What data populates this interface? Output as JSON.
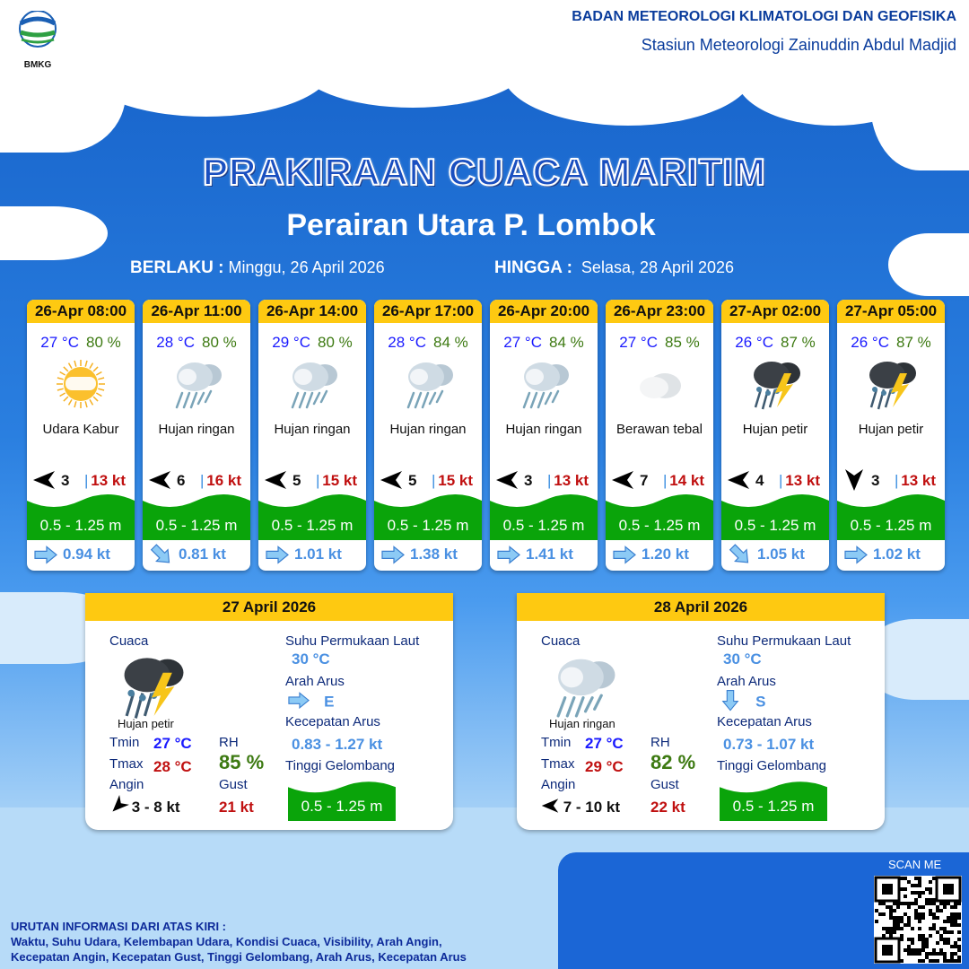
{
  "header": {
    "org": "BADAN METEOROLOGI KLIMATOLOGI DAN GEOFISIKA",
    "station": "Stasiun Meteorologi Zainuddin Abdul Madjid",
    "logo_text": "BMKG"
  },
  "title": "PRAKIRAAN CUACA MARITIM",
  "subtitle": "Perairan Utara P. Lombok",
  "validity": {
    "from_label": "BERLAKU :",
    "from": "Minggu, 26 April 2026",
    "to_label": "HINGGA :",
    "to": "Selasa, 28 April 2026"
  },
  "colors": {
    "header_yellow": "#fec911",
    "wave_green": "#0aa40a",
    "temp_blue": "#1a1aff",
    "rh_green": "#3d7a12",
    "gust_red": "#c01010",
    "current_blue": "#4a90e2"
  },
  "forecasts": [
    {
      "time": "26-Apr 08:00",
      "temp": "27 °C",
      "rh": "80 %",
      "icon": "haze-sun-icon",
      "condition": "Udara Kabur",
      "wind_dir": "left",
      "wind_speed": "3",
      "gust": "13 kt",
      "wave": "0.5 - 1.25 m",
      "current_dir": "right",
      "current_speed": "0.94 kt"
    },
    {
      "time": "26-Apr 11:00",
      "temp": "28 °C",
      "rh": "80 %",
      "icon": "light-rain-icon",
      "condition": "Hujan ringan",
      "wind_dir": "left",
      "wind_speed": "6",
      "gust": "16 kt",
      "wave": "0.5 - 1.25 m",
      "current_dir": "down-right",
      "current_speed": "0.81 kt"
    },
    {
      "time": "26-Apr 14:00",
      "temp": "29 °C",
      "rh": "80 %",
      "icon": "light-rain-icon",
      "condition": "Hujan ringan",
      "wind_dir": "left",
      "wind_speed": "5",
      "gust": "15 kt",
      "wave": "0.5 - 1.25 m",
      "current_dir": "right",
      "current_speed": "1.01 kt"
    },
    {
      "time": "26-Apr 17:00",
      "temp": "28 °C",
      "rh": "84 %",
      "icon": "light-rain-icon",
      "condition": "Hujan ringan",
      "wind_dir": "left",
      "wind_speed": "5",
      "gust": "15 kt",
      "wave": "0.5 - 1.25 m",
      "current_dir": "right",
      "current_speed": "1.38 kt"
    },
    {
      "time": "26-Apr 20:00",
      "temp": "27 °C",
      "rh": "84 %",
      "icon": "light-rain-icon",
      "condition": "Hujan ringan",
      "wind_dir": "left",
      "wind_speed": "3",
      "gust": "13 kt",
      "wave": "0.5 - 1.25 m",
      "current_dir": "right",
      "current_speed": "1.41 kt"
    },
    {
      "time": "26-Apr 23:00",
      "temp": "27 °C",
      "rh": "85 %",
      "icon": "overcast-cloud-icon",
      "condition": "Berawan tebal",
      "wind_dir": "left",
      "wind_speed": "7",
      "gust": "14 kt",
      "wave": "0.5 - 1.25 m",
      "current_dir": "right",
      "current_speed": "1.20 kt"
    },
    {
      "time": "27-Apr 02:00",
      "temp": "26 °C",
      "rh": "87 %",
      "icon": "thunderstorm-icon",
      "condition": "Hujan petir",
      "wind_dir": "left",
      "wind_speed": "4",
      "gust": "13 kt",
      "wave": "0.5 - 1.25 m",
      "current_dir": "down-right",
      "current_speed": "1.05 kt"
    },
    {
      "time": "27-Apr 05:00",
      "temp": "26 °C",
      "rh": "87 %",
      "icon": "thunderstorm-icon",
      "condition": "Hujan petir",
      "wind_dir": "down",
      "wind_speed": "3",
      "gust": "13 kt",
      "wave": "0.5 - 1.25 m",
      "current_dir": "right",
      "current_speed": "1.02 kt"
    }
  ],
  "daily": [
    {
      "date": "27 April 2026",
      "weather_label": "Cuaca",
      "icon": "thunderstorm-icon",
      "condition": "Hujan petir",
      "tmin_label": "Tmin",
      "tmin": "27 °C",
      "tmax_label": "Tmax",
      "tmax": "28 °C",
      "rh_label": "RH",
      "rh": "85 %",
      "wind_label": "Angin",
      "wind_dir": "down-left",
      "wind": "3  - 8 kt",
      "gust_label": "Gust",
      "gust": "21 kt",
      "sst_label": "Suhu Permukaan Laut",
      "sst": "30 °C",
      "current_dir_label": "Arah Arus",
      "current_dir_icon": "right",
      "current_dir": "E",
      "current_speed_label": "Kecepatan Arus",
      "current_speed": "0.83 - 1.27 kt",
      "wave_label": "Tinggi Gelombang",
      "wave": "0.5 - 1.25 m"
    },
    {
      "date": "28 April 2026",
      "weather_label": "Cuaca",
      "icon": "light-rain-icon",
      "condition": "Hujan ringan",
      "tmin_label": "Tmin",
      "tmin": "27 °C",
      "tmax_label": "Tmax",
      "tmax": "29 °C",
      "rh_label": "RH",
      "rh": "82 %",
      "wind_label": "Angin",
      "wind_dir": "left",
      "wind": "7  - 10 kt",
      "gust_label": "Gust",
      "gust": "22 kt",
      "sst_label": "Suhu Permukaan Laut",
      "sst": "30 °C",
      "current_dir_label": "Arah Arus",
      "current_dir_icon": "down",
      "current_dir": "S",
      "current_speed_label": "Kecepatan Arus",
      "current_speed": "0.73 - 1.07 kt",
      "wave_label": "Tinggi Gelombang",
      "wave": "0.5 - 1.25 m"
    }
  ],
  "footer": {
    "heading": "URUTAN INFORMASI DARI ATAS KIRI :",
    "line1": "Waktu, Suhu Udara, Kelembapan Udara, Kondisi Cuaca, Visibility, Arah Angin,",
    "line2": "Kecepatan Angin, Kecepatan Gust, Tinggi Gelombang, Arah Arus, Kecepatan Arus"
  },
  "qr": {
    "label": "SCAN ME"
  }
}
